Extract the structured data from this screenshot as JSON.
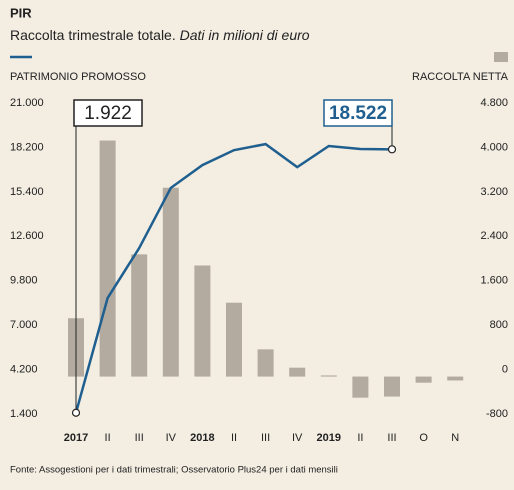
{
  "chart_data": {
    "type": "bar_line",
    "title": "PIR",
    "subtitle": "Raccolta trimestrale totale.",
    "subtitle_note": "Dati in milioni di euro",
    "source": "Fonte: Assogestioni per i dati trimestrali; Osservatorio Plus24 per i dati mensili",
    "categories": [
      "2017",
      "II",
      "III",
      "IV",
      "2018",
      "II",
      "III",
      "IV",
      "2019",
      "II",
      "III",
      "O",
      "N"
    ],
    "series": [
      {
        "name": "PATRIMONIO PROMOSSO",
        "type": "line",
        "color": "#1f5f8f",
        "axis": "y",
        "values": [
          1922,
          9150,
          12300,
          16090,
          17530,
          18470,
          18850,
          17400,
          18730,
          18540,
          18522,
          null,
          null
        ],
        "value_labels": [
          "1.922",
          null,
          null,
          null,
          null,
          null,
          null,
          null,
          null,
          null,
          "18.522",
          null,
          null
        ]
      },
      {
        "name": "RACCOLTA NETTA",
        "type": "bar",
        "color": "#b3aaa0",
        "axis": "y2",
        "values": [
          1050,
          4250,
          2200,
          3400,
          2000,
          1330,
          490,
          160,
          20,
          -380,
          -360,
          -110,
          -70
        ]
      }
    ],
    "ylim": [
      1400,
      21000
    ],
    "yticks": [
      {
        "value": 1400,
        "label": "1.400"
      },
      {
        "value": 4200,
        "label": "4.200"
      },
      {
        "value": 7000,
        "label": "7.000"
      },
      {
        "value": 9800,
        "label": "9.800"
      },
      {
        "value": 12600,
        "label": "12.600"
      },
      {
        "value": 15400,
        "label": "15.400"
      },
      {
        "value": 18200,
        "label": "18.200"
      },
      {
        "value": 21000,
        "label": "21.000"
      }
    ],
    "y2lim": [
      -800,
      4800
    ],
    "y2ticks": [
      -800,
      0,
      800,
      {
        "value": 1600,
        "label": "1.600"
      },
      {
        "value": 2400,
        "label": "2.400"
      },
      {
        "value": 3200,
        "label": "3.200"
      },
      {
        "value": 4000,
        "label": "4.000"
      },
      {
        "value": 4800,
        "label": "4.800"
      }
    ],
    "grid": false
  }
}
